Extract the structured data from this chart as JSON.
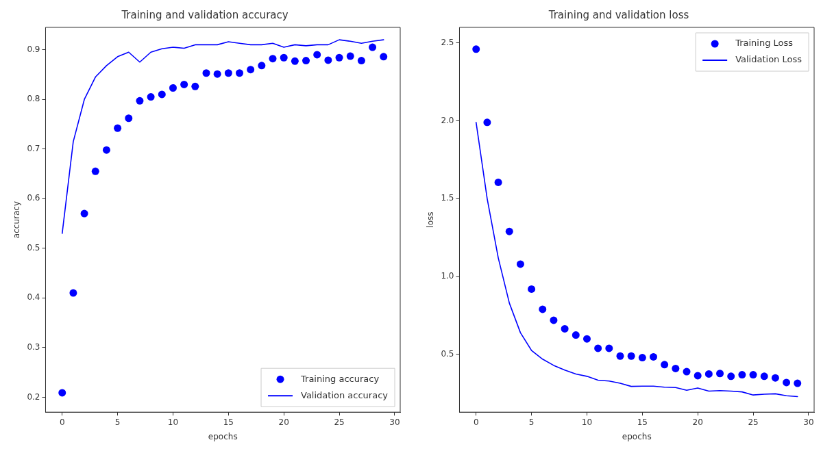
{
  "chart_data": [
    {
      "type": "scatter",
      "title": "Training and validation accuracy",
      "xlabel": "epochs",
      "ylabel": "accuracy",
      "x": [
        0,
        1,
        2,
        3,
        4,
        5,
        6,
        7,
        8,
        9,
        10,
        11,
        12,
        13,
        14,
        15,
        16,
        17,
        18,
        19,
        20,
        21,
        22,
        23,
        24,
        25,
        26,
        27,
        28,
        29
      ],
      "xlim": [
        -1.5,
        30.5
      ],
      "xticks": [
        0,
        5,
        10,
        15,
        20,
        25,
        30
      ],
      "ylim": [
        0.17,
        0.945
      ],
      "yticks": [
        0.2,
        0.3,
        0.4,
        0.5,
        0.6,
        0.7,
        0.8,
        0.9
      ],
      "grid": false,
      "legend": "bottom right",
      "series": [
        {
          "name": "Training accuracy",
          "marker": "circle",
          "color": "#0000ff",
          "values": [
            0.209,
            0.41,
            0.57,
            0.655,
            0.698,
            0.742,
            0.762,
            0.797,
            0.805,
            0.81,
            0.823,
            0.83,
            0.826,
            0.853,
            0.851,
            0.853,
            0.853,
            0.86,
            0.868,
            0.882,
            0.884,
            0.877,
            0.878,
            0.89,
            0.879,
            0.884,
            0.887,
            0.878,
            0.905,
            0.886
          ]
        },
        {
          "name": "Validation accuracy",
          "type": "line",
          "line_style": "solid",
          "color": "#0000ff",
          "values": [
            0.53,
            0.715,
            0.8,
            0.845,
            0.868,
            0.886,
            0.895,
            0.875,
            0.895,
            0.902,
            0.905,
            0.903,
            0.91,
            0.91,
            0.91,
            0.916,
            0.913,
            0.91,
            0.91,
            0.913,
            0.905,
            0.91,
            0.908,
            0.91,
            0.91,
            0.92,
            0.917,
            0.913,
            0.917,
            0.92
          ]
        }
      ]
    },
    {
      "type": "scatter",
      "title": "Training and validation loss",
      "xlabel": "epochs",
      "ylabel": "loss",
      "x": [
        0,
        1,
        2,
        3,
        4,
        5,
        6,
        7,
        8,
        9,
        10,
        11,
        12,
        13,
        14,
        15,
        16,
        17,
        18,
        19,
        20,
        21,
        22,
        23,
        24,
        25,
        26,
        27,
        28,
        29
      ],
      "xlim": [
        -1.5,
        30.5
      ],
      "xticks": [
        0,
        5,
        10,
        15,
        20,
        25,
        30
      ],
      "ylim": [
        0.13,
        2.6
      ],
      "yticks": [
        0.5,
        {
          "value": 1,
          "label": "1.0"
        },
        1.5,
        {
          "value": 2,
          "label": "2.0"
        },
        2.5
      ],
      "grid": false,
      "legend": "top right",
      "series": [
        {
          "name": "Training Loss",
          "marker": "circle",
          "color": "#0000ff",
          "values": [
            2.46,
            1.99,
            1.605,
            1.29,
            1.08,
            0.92,
            0.79,
            0.72,
            0.665,
            0.625,
            0.6,
            0.54,
            0.54,
            0.49,
            0.49,
            0.48,
            0.485,
            0.435,
            0.41,
            0.39,
            0.364,
            0.375,
            0.378,
            0.36,
            0.37,
            0.37,
            0.36,
            0.35,
            0.32,
            0.315
          ]
        },
        {
          "name": "Validation Loss",
          "type": "line",
          "line_style": "solid",
          "color": "#0000ff",
          "values": [
            1.99,
            1.5,
            1.12,
            0.83,
            0.64,
            0.526,
            0.47,
            0.43,
            0.4,
            0.375,
            0.36,
            0.335,
            0.33,
            0.315,
            0.295,
            0.297,
            0.297,
            0.29,
            0.288,
            0.27,
            0.285,
            0.265,
            0.268,
            0.265,
            0.26,
            0.24,
            0.245,
            0.248,
            0.235,
            0.23
          ]
        }
      ]
    }
  ]
}
